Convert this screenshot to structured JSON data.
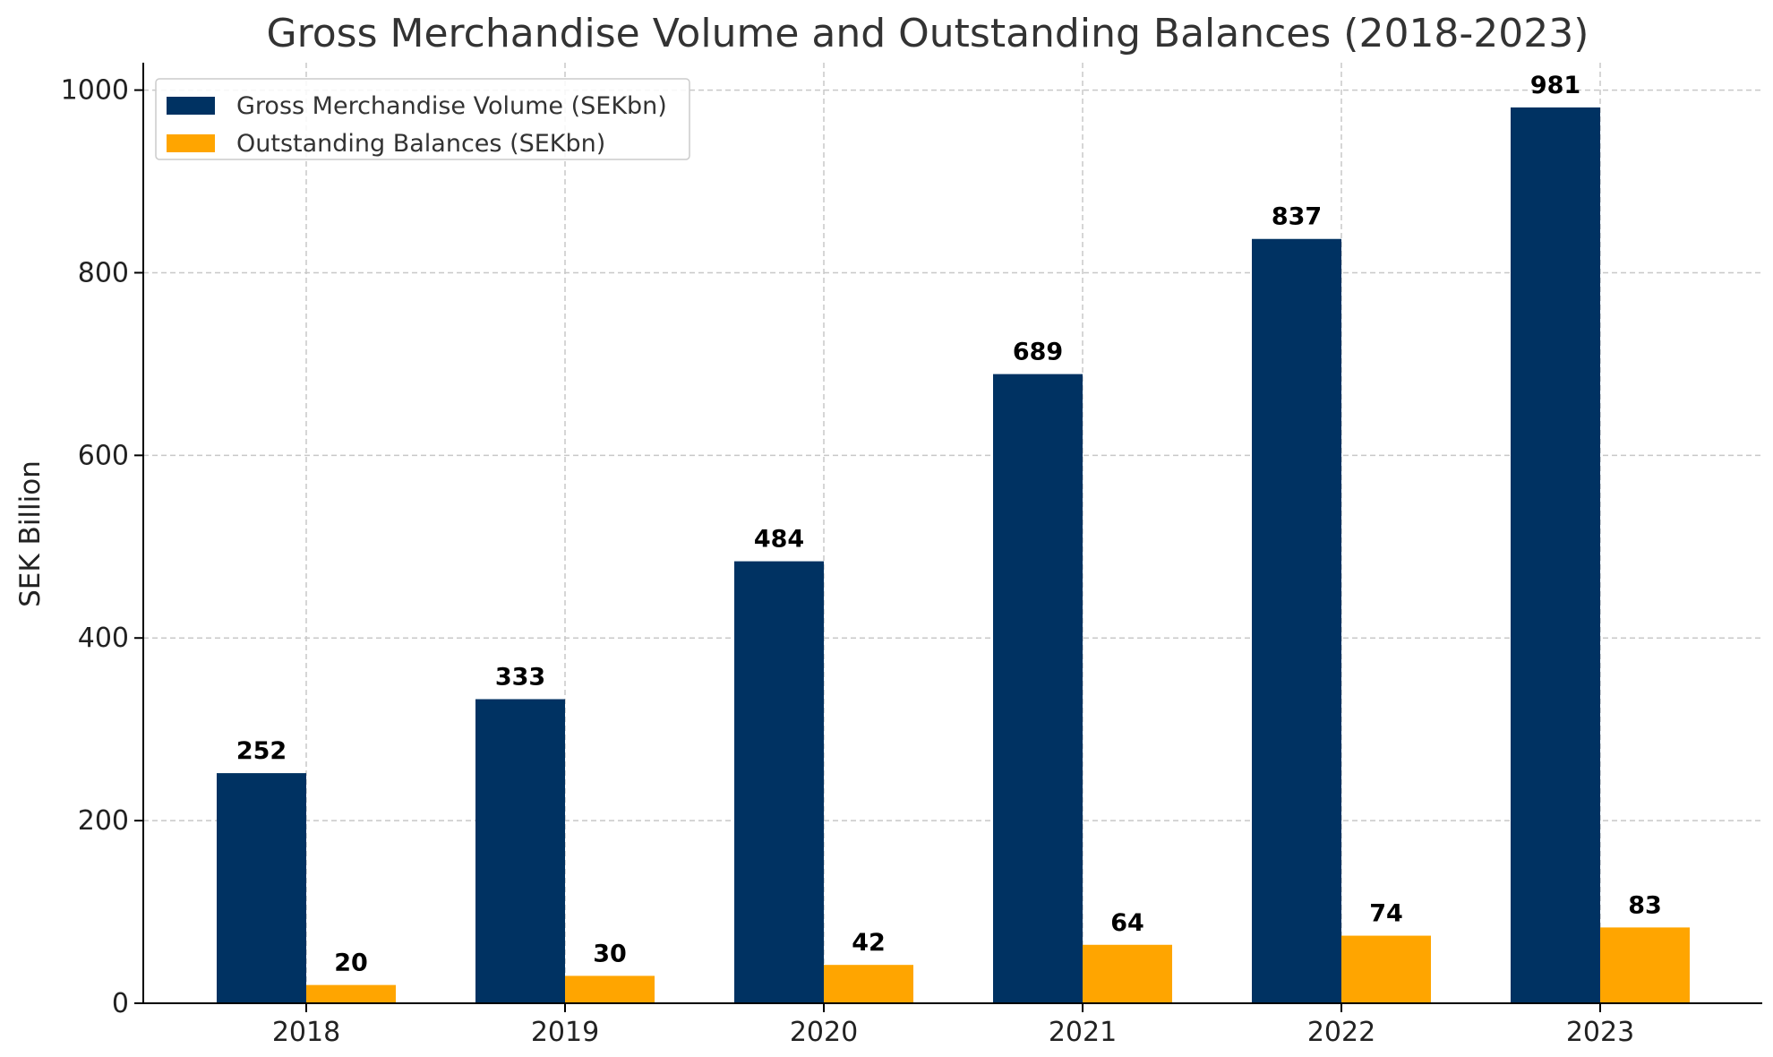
{
  "chart_data": {
    "type": "bar",
    "title": "Gross Merchandise Volume and Outstanding Balances (2018-2023)",
    "xlabel": "",
    "ylabel": "SEK Billion",
    "categories": [
      "2018",
      "2019",
      "2020",
      "2021",
      "2022",
      "2023"
    ],
    "series": [
      {
        "name": "Gross Merchandise Volume (SEKbn)",
        "color": "#003262",
        "values": [
          252,
          333,
          484,
          689,
          837,
          981
        ]
      },
      {
        "name": "Outstanding Balances (SEKbn)",
        "color": "#FFA500",
        "values": [
          20,
          30,
          42,
          64,
          74,
          83
        ]
      }
    ],
    "ylim": [
      0,
      1030
    ],
    "yticks": [
      0,
      200,
      400,
      600,
      800,
      1000
    ],
    "grid": true,
    "legend_position": "top-left"
  }
}
